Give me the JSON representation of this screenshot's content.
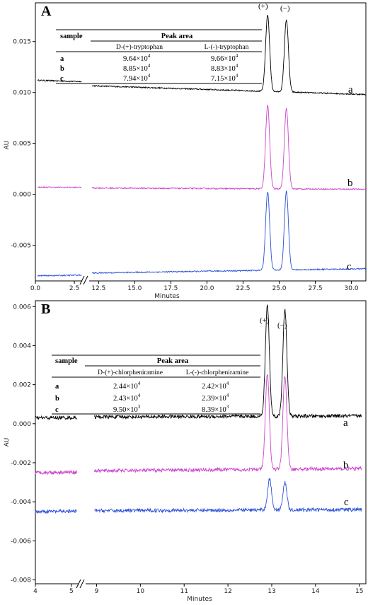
{
  "chart_data": [
    {
      "type": "line",
      "panel_label": "A",
      "ylabel": "AU",
      "xlabel": "Minutes",
      "xlim": [
        0,
        31
      ],
      "xticks": [
        "0.0",
        "2.5",
        "12.5",
        "15.0",
        "17.5",
        "20.0",
        "22.5",
        "25.0",
        "27.5",
        "30.0"
      ],
      "ylim": [
        -0.0085,
        0.0188
      ],
      "yticks": [
        "-0.005",
        "0.000",
        "0.005",
        "0.010",
        "0.015"
      ],
      "axis_break": "between 2.5 and 12.5",
      "peak_labels": [
        "(+)",
        "(−)"
      ],
      "series": [
        {
          "name": "a",
          "color": "#000000",
          "baseline_start": 0.0112,
          "baseline_end": 0.0098,
          "peaks": [
            {
              "x": 24.2,
              "height": 0.0075
            },
            {
              "x": 25.5,
              "height": 0.0071
            }
          ]
        },
        {
          "name": "b",
          "color": "#cc44cc",
          "baseline_start": 0.0007,
          "baseline_end": 0.0005,
          "peaks": [
            {
              "x": 24.2,
              "height": 0.0082
            },
            {
              "x": 25.5,
              "height": 0.0079
            }
          ]
        },
        {
          "name": "c",
          "color": "#2a4fd8",
          "baseline_start": -0.008,
          "baseline_end": -0.0073,
          "peaks": [
            {
              "x": 24.2,
              "height": 0.0077
            },
            {
              "x": 25.5,
              "height": 0.0077
            }
          ]
        }
      ],
      "table": {
        "col_sample": "sample",
        "col_group": "Peak area",
        "headers": [
          "D-(+)-tryptophan",
          "L-(-)-tryptophan"
        ],
        "rows": [
          {
            "sample": "a",
            "d": "9.64×10",
            "d_exp": "4",
            "l": "9.66×10",
            "l_exp": "4"
          },
          {
            "sample": "b",
            "d": "8.85×10",
            "d_exp": "4",
            "l": "8.83×10",
            "l_exp": "4"
          },
          {
            "sample": "c",
            "d": "7.94×10",
            "d_exp": "4",
            "l": "7.15×10",
            "l_exp": "4"
          }
        ]
      }
    },
    {
      "type": "line",
      "panel_label": "B",
      "ylabel": "AU",
      "xlabel": "Minutes",
      "xlim": [
        4,
        15.15
      ],
      "xticks": [
        "4",
        "5",
        "9",
        "10",
        "11",
        "12",
        "13",
        "14",
        "15"
      ],
      "ylim": [
        -0.0082,
        0.0063
      ],
      "yticks": [
        "-0.008",
        "-0.006",
        "-0.004",
        "-0.002",
        "0.000",
        "0.002",
        "0.004",
        "0.006"
      ],
      "axis_break": "between 5 and 9",
      "peak_labels": [
        "(+)",
        "(−)"
      ],
      "series": [
        {
          "name": "a",
          "color": "#000000",
          "baseline_start": 0.0003,
          "baseline_end": 0.0004,
          "peaks": [
            {
              "x": 12.9,
              "height": 0.0057
            },
            {
              "x": 13.3,
              "height": 0.0055
            }
          ]
        },
        {
          "name": "b",
          "color": "#cc44cc",
          "baseline_start": -0.0025,
          "baseline_end": -0.0023,
          "peaks": [
            {
              "x": 12.9,
              "height": 0.0049
            },
            {
              "x": 13.3,
              "height": 0.0048
            }
          ]
        },
        {
          "name": "c",
          "color": "#2a4fd8",
          "baseline_start": -0.0045,
          "baseline_end": -0.0044,
          "peaks": [
            {
              "x": 12.95,
              "height": 0.0016
            },
            {
              "x": 13.3,
              "height": 0.0014
            }
          ]
        }
      ],
      "table": {
        "col_sample": "sample",
        "col_group": "Peak area",
        "headers": [
          "D-(+)-chlorpheniramine",
          "L-(-)-chlorpheniramine"
        ],
        "rows": [
          {
            "sample": "a",
            "d": "2.44×10",
            "d_exp": "4",
            "l": "2.42×10",
            "l_exp": "4"
          },
          {
            "sample": "b",
            "d": "2.43×10",
            "d_exp": "4",
            "l": "2.39×10",
            "l_exp": "4"
          },
          {
            "sample": "c",
            "d": "9.50×10",
            "d_exp": "3",
            "l": "8.39×10",
            "l_exp": "3"
          }
        ]
      }
    }
  ]
}
